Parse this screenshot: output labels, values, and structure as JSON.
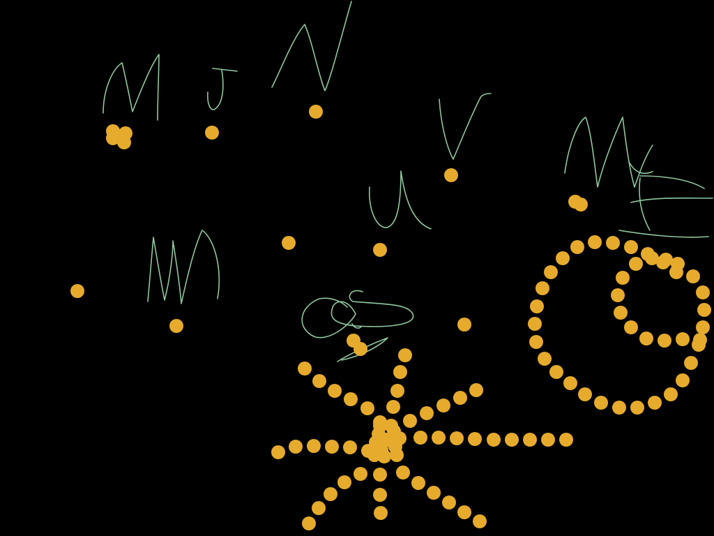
{
  "canvas": {
    "background": "#000000",
    "ink_color": "#8fc79f",
    "dot_color": "#e6ab2c"
  }
}
